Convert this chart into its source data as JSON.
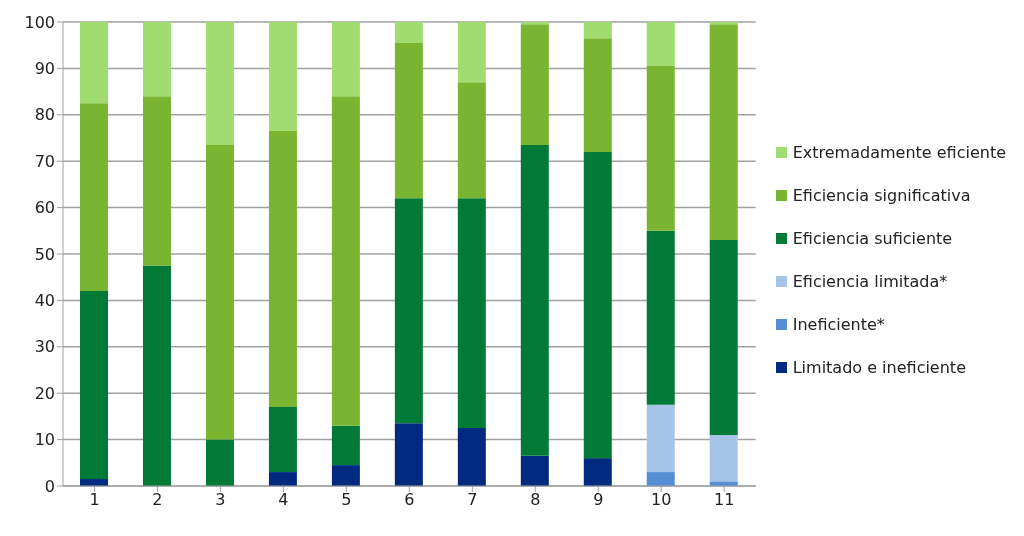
{
  "chart_data": {
    "type": "bar",
    "stacked": true,
    "categories": [
      "1",
      "2",
      "3",
      "4",
      "5",
      "6",
      "7",
      "8",
      "9",
      "10",
      "11"
    ],
    "series": [
      {
        "name": "Limitado e ineficiente",
        "color": "#002a80",
        "values": [
          1.5,
          0,
          0,
          3,
          4.5,
          13.5,
          12.5,
          6.5,
          6,
          0,
          0
        ]
      },
      {
        "name": "Ineficiente*",
        "color": "#558ed5",
        "values": [
          0,
          0,
          0,
          0,
          0,
          0,
          0,
          0,
          0,
          3,
          1
        ]
      },
      {
        "name": "Eficiencia limitada*",
        "color": "#a6c4e8",
        "values": [
          0,
          0,
          0,
          0,
          0,
          0,
          0,
          0,
          0,
          14.5,
          10
        ]
      },
      {
        "name": "Eficiencia suficiente",
        "color": "#007a36",
        "values": [
          40.5,
          47.5,
          10,
          14,
          8.5,
          48.5,
          49.5,
          67,
          66,
          37.5,
          42
        ]
      },
      {
        "name": "Eficiencia significativa",
        "color": "#79b530",
        "values": [
          40.5,
          36.5,
          63.5,
          59.5,
          71,
          33.5,
          25,
          26,
          24.5,
          35.5,
          46.5
        ]
      },
      {
        "name": "Extremadamente eficiente",
        "color": "#a0dc70",
        "values": [
          17.5,
          16,
          26.5,
          23.5,
          16,
          4.5,
          13,
          0.5,
          3.5,
          9.5,
          0.5
        ]
      }
    ],
    "ylim": [
      0,
      100
    ],
    "yticks": [
      0,
      10,
      20,
      30,
      40,
      50,
      60,
      70,
      80,
      90,
      100
    ],
    "grid": "y",
    "legend": "right"
  }
}
